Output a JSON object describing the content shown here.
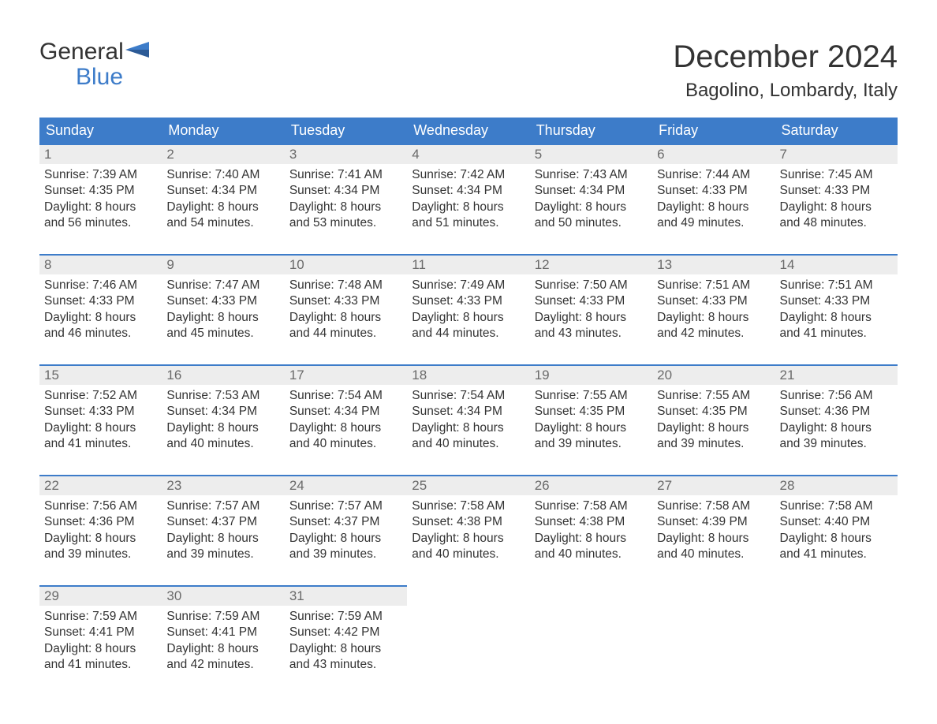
{
  "logo": {
    "general": "General",
    "blue": "Blue"
  },
  "title": "December 2024",
  "location": "Bagolino, Lombardy, Italy",
  "colors": {
    "header_bg": "#3d7cc9",
    "header_text": "#ffffff",
    "daynum_bg": "#ededed",
    "daynum_text": "#6a6a6a",
    "body_text": "#333333",
    "row_top_border": "#3d7cc9",
    "logo_blue": "#3d7cc9",
    "page_bg": "#ffffff"
  },
  "weekdays": [
    "Sunday",
    "Monday",
    "Tuesday",
    "Wednesday",
    "Thursday",
    "Friday",
    "Saturday"
  ],
  "labels": {
    "sunrise": "Sunrise:",
    "sunset": "Sunset:",
    "daylight": "Daylight:"
  },
  "weeks": [
    [
      {
        "n": "1",
        "sunrise": "7:39 AM",
        "sunset": "4:35 PM",
        "daylight": "8 hours and 56 minutes."
      },
      {
        "n": "2",
        "sunrise": "7:40 AM",
        "sunset": "4:34 PM",
        "daylight": "8 hours and 54 minutes."
      },
      {
        "n": "3",
        "sunrise": "7:41 AM",
        "sunset": "4:34 PM",
        "daylight": "8 hours and 53 minutes."
      },
      {
        "n": "4",
        "sunrise": "7:42 AM",
        "sunset": "4:34 PM",
        "daylight": "8 hours and 51 minutes."
      },
      {
        "n": "5",
        "sunrise": "7:43 AM",
        "sunset": "4:34 PM",
        "daylight": "8 hours and 50 minutes."
      },
      {
        "n": "6",
        "sunrise": "7:44 AM",
        "sunset": "4:33 PM",
        "daylight": "8 hours and 49 minutes."
      },
      {
        "n": "7",
        "sunrise": "7:45 AM",
        "sunset": "4:33 PM",
        "daylight": "8 hours and 48 minutes."
      }
    ],
    [
      {
        "n": "8",
        "sunrise": "7:46 AM",
        "sunset": "4:33 PM",
        "daylight": "8 hours and 46 minutes."
      },
      {
        "n": "9",
        "sunrise": "7:47 AM",
        "sunset": "4:33 PM",
        "daylight": "8 hours and 45 minutes."
      },
      {
        "n": "10",
        "sunrise": "7:48 AM",
        "sunset": "4:33 PM",
        "daylight": "8 hours and 44 minutes."
      },
      {
        "n": "11",
        "sunrise": "7:49 AM",
        "sunset": "4:33 PM",
        "daylight": "8 hours and 44 minutes."
      },
      {
        "n": "12",
        "sunrise": "7:50 AM",
        "sunset": "4:33 PM",
        "daylight": "8 hours and 43 minutes."
      },
      {
        "n": "13",
        "sunrise": "7:51 AM",
        "sunset": "4:33 PM",
        "daylight": "8 hours and 42 minutes."
      },
      {
        "n": "14",
        "sunrise": "7:51 AM",
        "sunset": "4:33 PM",
        "daylight": "8 hours and 41 minutes."
      }
    ],
    [
      {
        "n": "15",
        "sunrise": "7:52 AM",
        "sunset": "4:33 PM",
        "daylight": "8 hours and 41 minutes."
      },
      {
        "n": "16",
        "sunrise": "7:53 AM",
        "sunset": "4:34 PM",
        "daylight": "8 hours and 40 minutes."
      },
      {
        "n": "17",
        "sunrise": "7:54 AM",
        "sunset": "4:34 PM",
        "daylight": "8 hours and 40 minutes."
      },
      {
        "n": "18",
        "sunrise": "7:54 AM",
        "sunset": "4:34 PM",
        "daylight": "8 hours and 40 minutes."
      },
      {
        "n": "19",
        "sunrise": "7:55 AM",
        "sunset": "4:35 PM",
        "daylight": "8 hours and 39 minutes."
      },
      {
        "n": "20",
        "sunrise": "7:55 AM",
        "sunset": "4:35 PM",
        "daylight": "8 hours and 39 minutes."
      },
      {
        "n": "21",
        "sunrise": "7:56 AM",
        "sunset": "4:36 PM",
        "daylight": "8 hours and 39 minutes."
      }
    ],
    [
      {
        "n": "22",
        "sunrise": "7:56 AM",
        "sunset": "4:36 PM",
        "daylight": "8 hours and 39 minutes."
      },
      {
        "n": "23",
        "sunrise": "7:57 AM",
        "sunset": "4:37 PM",
        "daylight": "8 hours and 39 minutes."
      },
      {
        "n": "24",
        "sunrise": "7:57 AM",
        "sunset": "4:37 PM",
        "daylight": "8 hours and 39 minutes."
      },
      {
        "n": "25",
        "sunrise": "7:58 AM",
        "sunset": "4:38 PM",
        "daylight": "8 hours and 40 minutes."
      },
      {
        "n": "26",
        "sunrise": "7:58 AM",
        "sunset": "4:38 PM",
        "daylight": "8 hours and 40 minutes."
      },
      {
        "n": "27",
        "sunrise": "7:58 AM",
        "sunset": "4:39 PM",
        "daylight": "8 hours and 40 minutes."
      },
      {
        "n": "28",
        "sunrise": "7:58 AM",
        "sunset": "4:40 PM",
        "daylight": "8 hours and 41 minutes."
      }
    ],
    [
      {
        "n": "29",
        "sunrise": "7:59 AM",
        "sunset": "4:41 PM",
        "daylight": "8 hours and 41 minutes."
      },
      {
        "n": "30",
        "sunrise": "7:59 AM",
        "sunset": "4:41 PM",
        "daylight": "8 hours and 42 minutes."
      },
      {
        "n": "31",
        "sunrise": "7:59 AM",
        "sunset": "4:42 PM",
        "daylight": "8 hours and 43 minutes."
      },
      null,
      null,
      null,
      null
    ]
  ]
}
